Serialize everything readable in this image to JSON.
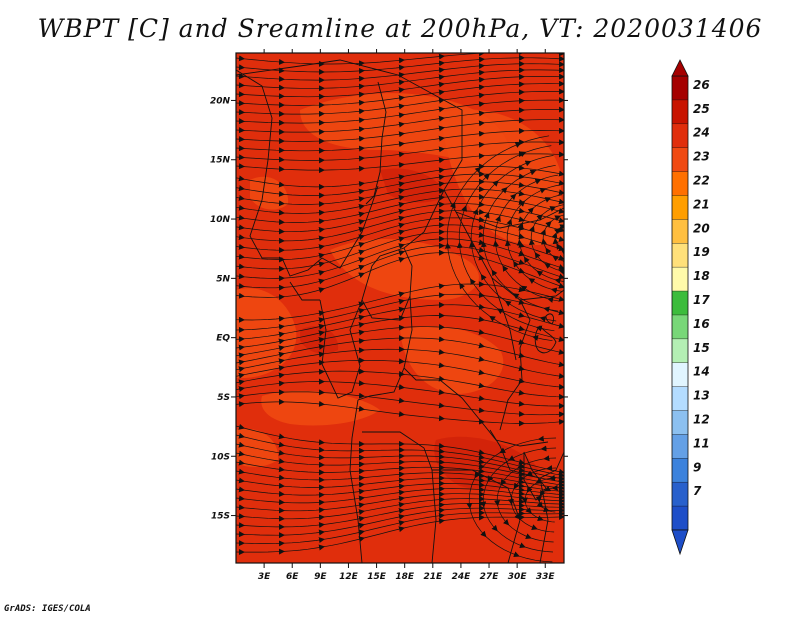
{
  "title": "WBPT [C] and Sreamline at 200hPa, VT: 2020031406",
  "credit": "GrADS: IGES/COLA",
  "map": {
    "lat_ticks": [
      "20N",
      "15N",
      "10N",
      "5N",
      "EQ",
      "5S",
      "10S",
      "15S"
    ],
    "lon_ticks": [
      "3E",
      "6E",
      "9E",
      "12E",
      "15E",
      "18E",
      "21E",
      "24E",
      "27E",
      "30E",
      "33E"
    ],
    "lon_range": [
      0,
      35
    ],
    "lat_range": [
      -19,
      24
    ],
    "field_colors": {
      "base": "#e02e0c",
      "warm_patch": "#f04a12",
      "hot_patch": "#c81c08"
    }
  },
  "colorbar": {
    "labels": [
      "26",
      "25",
      "24",
      "23",
      "22",
      "21",
      "20",
      "19",
      "18",
      "17",
      "16",
      "15",
      "14",
      "13",
      "12",
      "11",
      "9",
      "7"
    ],
    "colors": [
      "#a50000",
      "#c81400",
      "#e02e0c",
      "#f04a12",
      "#ff7000",
      "#ff9e00",
      "#ffbf40",
      "#ffe07a",
      "#fffaaa",
      "#3cbc3c",
      "#78d778",
      "#b4efb4",
      "#e1f5ff",
      "#b4dcff",
      "#8cc0f0",
      "#64a0e6",
      "#3c82dc",
      "#2860cc",
      "#1e4ec8"
    ]
  }
}
